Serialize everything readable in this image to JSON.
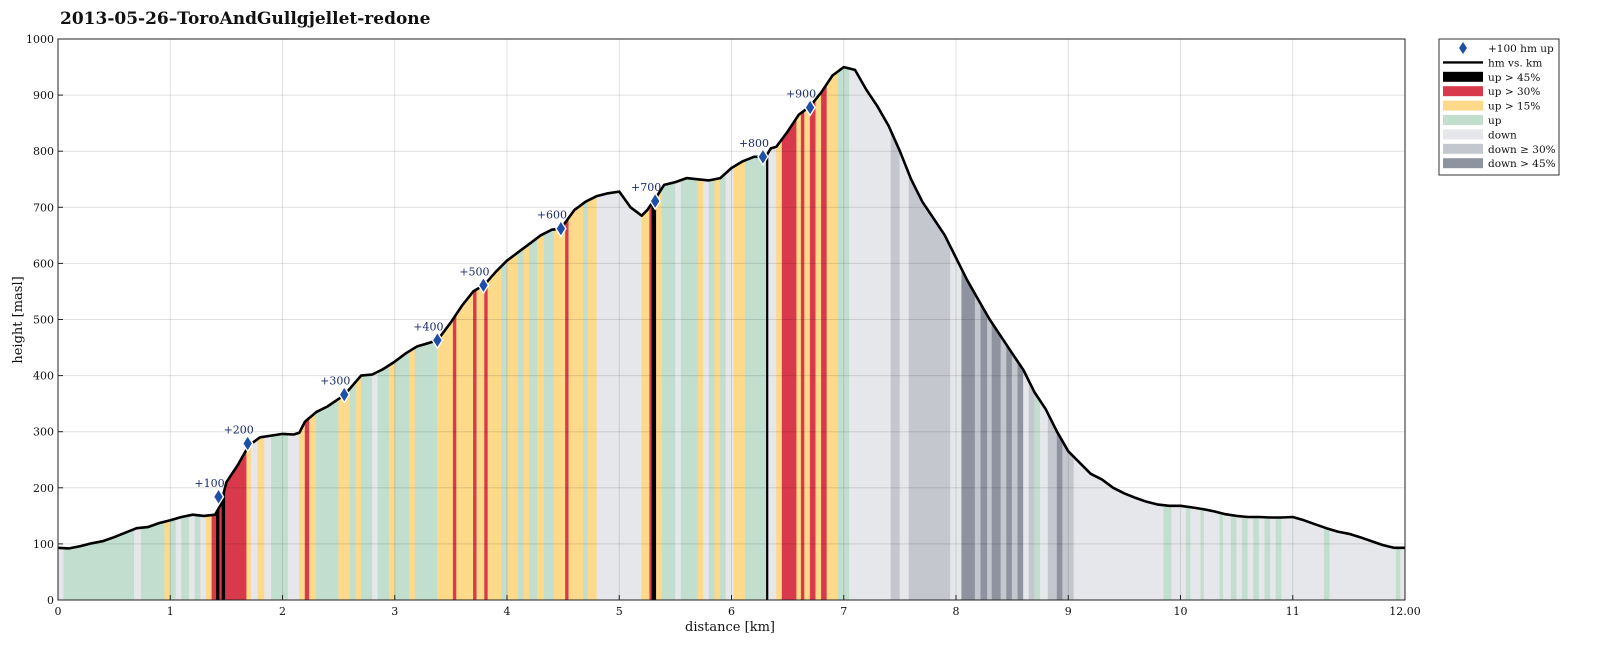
{
  "chart_data": {
    "type": "area",
    "title": "2013-05-26–ToroAndGullgjellet-redone",
    "xlabel": "distance [km]",
    "ylabel": "height [masl]",
    "xlim": [
      0,
      12
    ],
    "ylim": [
      0,
      1000
    ],
    "x_ticks": [
      "0",
      "1",
      "2",
      "3",
      "4",
      "5",
      "6",
      "7",
      "8",
      "9",
      "10",
      "11",
      "12.00"
    ],
    "y_ticks": [
      "0",
      "100",
      "200",
      "300",
      "400",
      "500",
      "600",
      "700",
      "800",
      "900",
      "1000"
    ],
    "grid": true,
    "legend_position": "outside-top-right",
    "legend": [
      {
        "key": "marker",
        "label": "+100 hm up"
      },
      {
        "key": "line",
        "label": "hm vs. km"
      },
      {
        "key": "up45",
        "label": "up > 45%"
      },
      {
        "key": "up30",
        "label": "up > 30%"
      },
      {
        "key": "up15",
        "label": "up > 15%"
      },
      {
        "key": "up",
        "label": "up"
      },
      {
        "key": "down",
        "label": "down"
      },
      {
        "key": "down30",
        "label": "down ≥ 30%"
      },
      {
        "key": "down45",
        "label": "down > 45%"
      }
    ],
    "colors": {
      "up45": "#000000",
      "up30": "#d93a4b",
      "up15": "#fdd98a",
      "up": "#c2dece",
      "down": "#e6e7ea",
      "down30": "#c5c7cf",
      "down45": "#8e939f",
      "line": "#000000",
      "marker": "#1d4fa8",
      "annotation": "#1a2a6c"
    },
    "profile": {
      "x": [
        0,
        0.1,
        0.2,
        0.3,
        0.4,
        0.5,
        0.6,
        0.7,
        0.8,
        0.9,
        1.0,
        1.1,
        1.2,
        1.3,
        1.4,
        1.45,
        1.5,
        1.6,
        1.7,
        1.8,
        1.9,
        2.0,
        2.1,
        2.15,
        2.2,
        2.3,
        2.4,
        2.55,
        2.7,
        2.8,
        2.9,
        3.0,
        3.1,
        3.2,
        3.3,
        3.38,
        3.5,
        3.6,
        3.7,
        3.8,
        3.9,
        4.0,
        4.1,
        4.2,
        4.3,
        4.4,
        4.48,
        4.6,
        4.7,
        4.8,
        4.9,
        5.0,
        5.1,
        5.2,
        5.25,
        5.3,
        5.33,
        5.4,
        5.5,
        5.6,
        5.7,
        5.8,
        5.9,
        6.0,
        6.1,
        6.2,
        6.28,
        6.32,
        6.35,
        6.4,
        6.5,
        6.6,
        6.7,
        6.8,
        6.9,
        7.0,
        7.1,
        7.2,
        7.3,
        7.4,
        7.5,
        7.6,
        7.7,
        7.8,
        7.9,
        8.0,
        8.1,
        8.2,
        8.3,
        8.4,
        8.5,
        8.6,
        8.7,
        8.8,
        8.9,
        9.0,
        9.1,
        9.2,
        9.3,
        9.4,
        9.5,
        9.6,
        9.7,
        9.8,
        9.9,
        10.0,
        10.1,
        10.2,
        10.3,
        10.4,
        10.5,
        10.6,
        10.7,
        10.8,
        10.9,
        11.0,
        11.1,
        11.2,
        11.3,
        11.4,
        11.5,
        11.6,
        11.7,
        11.8,
        11.9,
        12.0
      ],
      "y": [
        93,
        92,
        96,
        101,
        105,
        112,
        120,
        128,
        130,
        137,
        142,
        148,
        152,
        150,
        152,
        170,
        210,
        240,
        275,
        290,
        293,
        296,
        295,
        298,
        318,
        335,
        345,
        365,
        400,
        402,
        412,
        425,
        440,
        452,
        458,
        463,
        495,
        525,
        550,
        562,
        585,
        605,
        620,
        635,
        650,
        660,
        662,
        695,
        710,
        720,
        725,
        728,
        700,
        685,
        695,
        710,
        718,
        740,
        745,
        752,
        750,
        748,
        752,
        770,
        782,
        790,
        790,
        795,
        805,
        808,
        835,
        865,
        880,
        905,
        935,
        950,
        945,
        910,
        880,
        845,
        800,
        750,
        710,
        680,
        650,
        610,
        570,
        535,
        500,
        470,
        440,
        410,
        370,
        340,
        300,
        265,
        245,
        225,
        215,
        200,
        190,
        182,
        175,
        170,
        168,
        168,
        165,
        162,
        158,
        153,
        150,
        148,
        148,
        147,
        147,
        148,
        142,
        135,
        128,
        122,
        118,
        112,
        105,
        98,
        93,
        93
      ]
    },
    "segments": [
      {
        "x0": 0,
        "x1": 0.05,
        "c": "down"
      },
      {
        "x0": 0.05,
        "x1": 0.68,
        "c": "up"
      },
      {
        "x0": 0.68,
        "x1": 0.74,
        "c": "down"
      },
      {
        "x0": 0.74,
        "x1": 0.95,
        "c": "up"
      },
      {
        "x0": 0.95,
        "x1": 1.0,
        "c": "up15"
      },
      {
        "x0": 1.0,
        "x1": 1.05,
        "c": "up"
      },
      {
        "x0": 1.05,
        "x1": 1.1,
        "c": "down"
      },
      {
        "x0": 1.1,
        "x1": 1.17,
        "c": "up"
      },
      {
        "x0": 1.17,
        "x1": 1.22,
        "c": "down"
      },
      {
        "x0": 1.22,
        "x1": 1.27,
        "c": "up"
      },
      {
        "x0": 1.27,
        "x1": 1.32,
        "c": "down"
      },
      {
        "x0": 1.32,
        "x1": 1.37,
        "c": "up15"
      },
      {
        "x0": 1.37,
        "x1": 1.41,
        "c": "up30"
      },
      {
        "x0": 1.41,
        "x1": 1.44,
        "c": "up45"
      },
      {
        "x0": 1.44,
        "x1": 1.46,
        "c": "up30"
      },
      {
        "x0": 1.46,
        "x1": 1.49,
        "c": "up45"
      },
      {
        "x0": 1.49,
        "x1": 1.68,
        "c": "up30"
      },
      {
        "x0": 1.68,
        "x1": 1.72,
        "c": "up15"
      },
      {
        "x0": 1.72,
        "x1": 1.78,
        "c": "down"
      },
      {
        "x0": 1.78,
        "x1": 1.84,
        "c": "up15"
      },
      {
        "x0": 1.84,
        "x1": 1.9,
        "c": "down"
      },
      {
        "x0": 1.9,
        "x1": 1.95,
        "c": "up"
      },
      {
        "x0": 1.95,
        "x1": 2.05,
        "c": "up"
      },
      {
        "x0": 2.05,
        "x1": 2.15,
        "c": "down"
      },
      {
        "x0": 2.15,
        "x1": 2.2,
        "c": "up15"
      },
      {
        "x0": 2.2,
        "x1": 2.24,
        "c": "up30"
      },
      {
        "x0": 2.24,
        "x1": 2.3,
        "c": "up15"
      },
      {
        "x0": 2.3,
        "x1": 2.5,
        "c": "up"
      },
      {
        "x0": 2.5,
        "x1": 2.6,
        "c": "up15"
      },
      {
        "x0": 2.6,
        "x1": 2.65,
        "c": "up"
      },
      {
        "x0": 2.65,
        "x1": 2.7,
        "c": "up15"
      },
      {
        "x0": 2.7,
        "x1": 2.8,
        "c": "up"
      },
      {
        "x0": 2.8,
        "x1": 2.85,
        "c": "down"
      },
      {
        "x0": 2.85,
        "x1": 2.95,
        "c": "up"
      },
      {
        "x0": 2.95,
        "x1": 3.0,
        "c": "up15"
      },
      {
        "x0": 3.0,
        "x1": 3.13,
        "c": "up"
      },
      {
        "x0": 3.13,
        "x1": 3.18,
        "c": "up15"
      },
      {
        "x0": 3.18,
        "x1": 3.38,
        "c": "up"
      },
      {
        "x0": 3.38,
        "x1": 3.52,
        "c": "up15"
      },
      {
        "x0": 3.52,
        "x1": 3.55,
        "c": "up30"
      },
      {
        "x0": 3.55,
        "x1": 3.7,
        "c": "up15"
      },
      {
        "x0": 3.7,
        "x1": 3.73,
        "c": "up30"
      },
      {
        "x0": 3.73,
        "x1": 3.8,
        "c": "up15"
      },
      {
        "x0": 3.8,
        "x1": 3.83,
        "c": "up30"
      },
      {
        "x0": 3.83,
        "x1": 3.95,
        "c": "up15"
      },
      {
        "x0": 3.95,
        "x1": 4.0,
        "c": "up"
      },
      {
        "x0": 4.0,
        "x1": 4.1,
        "c": "up15"
      },
      {
        "x0": 4.1,
        "x1": 4.15,
        "c": "up"
      },
      {
        "x0": 4.15,
        "x1": 4.2,
        "c": "up15"
      },
      {
        "x0": 4.2,
        "x1": 4.27,
        "c": "up"
      },
      {
        "x0": 4.27,
        "x1": 4.33,
        "c": "up15"
      },
      {
        "x0": 4.33,
        "x1": 4.42,
        "c": "up"
      },
      {
        "x0": 4.42,
        "x1": 4.52,
        "c": "up15"
      },
      {
        "x0": 4.52,
        "x1": 4.55,
        "c": "up30"
      },
      {
        "x0": 4.55,
        "x1": 4.68,
        "c": "up15"
      },
      {
        "x0": 4.68,
        "x1": 4.72,
        "c": "up"
      },
      {
        "x0": 4.72,
        "x1": 4.8,
        "c": "up15"
      },
      {
        "x0": 4.8,
        "x1": 5.2,
        "c": "down"
      },
      {
        "x0": 5.2,
        "x1": 5.27,
        "c": "up15"
      },
      {
        "x0": 5.27,
        "x1": 5.29,
        "c": "up30"
      },
      {
        "x0": 5.29,
        "x1": 5.33,
        "c": "up45"
      },
      {
        "x0": 5.33,
        "x1": 5.38,
        "c": "up15"
      },
      {
        "x0": 5.38,
        "x1": 5.5,
        "c": "up"
      },
      {
        "x0": 5.5,
        "x1": 5.55,
        "c": "down"
      },
      {
        "x0": 5.55,
        "x1": 5.7,
        "c": "up"
      },
      {
        "x0": 5.7,
        "x1": 5.75,
        "c": "up15"
      },
      {
        "x0": 5.75,
        "x1": 5.8,
        "c": "down"
      },
      {
        "x0": 5.8,
        "x1": 5.85,
        "c": "up"
      },
      {
        "x0": 5.85,
        "x1": 5.9,
        "c": "up15"
      },
      {
        "x0": 5.9,
        "x1": 5.95,
        "c": "up"
      },
      {
        "x0": 5.95,
        "x1": 6.02,
        "c": "down"
      },
      {
        "x0": 6.02,
        "x1": 6.12,
        "c": "up15"
      },
      {
        "x0": 6.12,
        "x1": 6.31,
        "c": "up"
      },
      {
        "x0": 6.31,
        "x1": 6.33,
        "c": "up45"
      },
      {
        "x0": 6.33,
        "x1": 6.4,
        "c": "down"
      },
      {
        "x0": 6.4,
        "x1": 6.45,
        "c": "up15"
      },
      {
        "x0": 6.45,
        "x1": 6.58,
        "c": "up30"
      },
      {
        "x0": 6.58,
        "x1": 6.62,
        "c": "up15"
      },
      {
        "x0": 6.62,
        "x1": 6.65,
        "c": "up30"
      },
      {
        "x0": 6.65,
        "x1": 6.7,
        "c": "up15"
      },
      {
        "x0": 6.7,
        "x1": 6.75,
        "c": "up30"
      },
      {
        "x0": 6.75,
        "x1": 6.8,
        "c": "up15"
      },
      {
        "x0": 6.8,
        "x1": 6.85,
        "c": "up30"
      },
      {
        "x0": 6.85,
        "x1": 6.95,
        "c": "up15"
      },
      {
        "x0": 6.95,
        "x1": 7.05,
        "c": "up"
      },
      {
        "x0": 7.05,
        "x1": 7.42,
        "c": "down"
      },
      {
        "x0": 7.42,
        "x1": 7.5,
        "c": "down30"
      },
      {
        "x0": 7.5,
        "x1": 7.58,
        "c": "down"
      },
      {
        "x0": 7.58,
        "x1": 7.95,
        "c": "down30"
      },
      {
        "x0": 7.95,
        "x1": 8.05,
        "c": "down"
      },
      {
        "x0": 8.05,
        "x1": 8.17,
        "c": "down45"
      },
      {
        "x0": 8.17,
        "x1": 8.22,
        "c": "down30"
      },
      {
        "x0": 8.22,
        "x1": 8.28,
        "c": "down45"
      },
      {
        "x0": 8.28,
        "x1": 8.32,
        "c": "down30"
      },
      {
        "x0": 8.32,
        "x1": 8.4,
        "c": "down45"
      },
      {
        "x0": 8.4,
        "x1": 8.45,
        "c": "down30"
      },
      {
        "x0": 8.45,
        "x1": 8.5,
        "c": "down45"
      },
      {
        "x0": 8.5,
        "x1": 8.55,
        "c": "down30"
      },
      {
        "x0": 8.55,
        "x1": 8.6,
        "c": "down45"
      },
      {
        "x0": 8.6,
        "x1": 8.65,
        "c": "down"
      },
      {
        "x0": 8.65,
        "x1": 8.7,
        "c": "down30"
      },
      {
        "x0": 8.7,
        "x1": 8.75,
        "c": "up"
      },
      {
        "x0": 8.75,
        "x1": 8.82,
        "c": "down"
      },
      {
        "x0": 8.82,
        "x1": 8.9,
        "c": "down30"
      },
      {
        "x0": 8.9,
        "x1": 8.95,
        "c": "down45"
      },
      {
        "x0": 8.95,
        "x1": 9.05,
        "c": "down30"
      },
      {
        "x0": 9.05,
        "x1": 9.85,
        "c": "down"
      },
      {
        "x0": 9.85,
        "x1": 9.92,
        "c": "up"
      },
      {
        "x0": 9.92,
        "x1": 10.05,
        "c": "down"
      },
      {
        "x0": 10.05,
        "x1": 10.09,
        "c": "up"
      },
      {
        "x0": 10.09,
        "x1": 10.18,
        "c": "down"
      },
      {
        "x0": 10.18,
        "x1": 10.21,
        "c": "up"
      },
      {
        "x0": 10.21,
        "x1": 10.35,
        "c": "down"
      },
      {
        "x0": 10.35,
        "x1": 10.38,
        "c": "up"
      },
      {
        "x0": 10.38,
        "x1": 10.45,
        "c": "down"
      },
      {
        "x0": 10.45,
        "x1": 10.5,
        "c": "up"
      },
      {
        "x0": 10.5,
        "x1": 10.55,
        "c": "down"
      },
      {
        "x0": 10.55,
        "x1": 10.6,
        "c": "up"
      },
      {
        "x0": 10.6,
        "x1": 10.65,
        "c": "down"
      },
      {
        "x0": 10.65,
        "x1": 10.7,
        "c": "up"
      },
      {
        "x0": 10.7,
        "x1": 10.75,
        "c": "down"
      },
      {
        "x0": 10.75,
        "x1": 10.8,
        "c": "up"
      },
      {
        "x0": 10.8,
        "x1": 10.85,
        "c": "down"
      },
      {
        "x0": 10.85,
        "x1": 10.9,
        "c": "up"
      },
      {
        "x0": 10.9,
        "x1": 11.28,
        "c": "down"
      },
      {
        "x0": 11.28,
        "x1": 11.33,
        "c": "up"
      },
      {
        "x0": 11.33,
        "x1": 11.92,
        "c": "down"
      },
      {
        "x0": 11.92,
        "x1": 11.96,
        "c": "up"
      },
      {
        "x0": 11.96,
        "x1": 12.0,
        "c": "down"
      }
    ],
    "markers": [
      {
        "x": 1.43,
        "y": 184,
        "label": "+100"
      },
      {
        "x": 1.69,
        "y": 279,
        "label": "+200"
      },
      {
        "x": 2.55,
        "y": 366,
        "label": "+300"
      },
      {
        "x": 3.38,
        "y": 463,
        "label": "+400"
      },
      {
        "x": 3.79,
        "y": 561,
        "label": "+500"
      },
      {
        "x": 4.48,
        "y": 662,
        "label": "+600"
      },
      {
        "x": 5.32,
        "y": 711,
        "label": "+700"
      },
      {
        "x": 6.28,
        "y": 790,
        "label": "+800"
      },
      {
        "x": 6.7,
        "y": 878,
        "label": "+900"
      }
    ]
  }
}
